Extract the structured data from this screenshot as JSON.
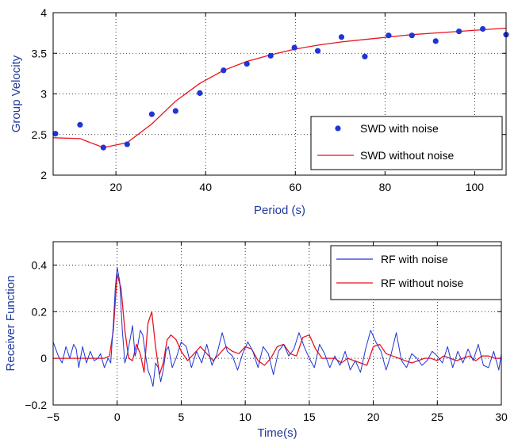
{
  "colors": {
    "blue": "#1f35d6",
    "red": "#e8131f",
    "axis_label": "#1f3a9b",
    "grid": "#000000"
  },
  "chart_data": [
    {
      "type": "scatter+line",
      "xlabel": "Period (s)",
      "ylabel": "Group Velocity",
      "xlim": [
        6,
        107
      ],
      "ylim": [
        2,
        4
      ],
      "xticks": [
        20,
        40,
        60,
        80,
        100
      ],
      "yticks": [
        2,
        2.5,
        3,
        3.5,
        4
      ],
      "grid": true,
      "legend_position": "bottom-right",
      "series": [
        {
          "name": "SWD with noise",
          "style": "markers",
          "color": "#1f35d6",
          "x": [
            6.5,
            12,
            17.2,
            22.5,
            28,
            33.3,
            38.7,
            44,
            49.2,
            54.5,
            59.8,
            65,
            70.3,
            75.5,
            80.8,
            86,
            91.3,
            96.5,
            101.8,
            107
          ],
          "y": [
            2.51,
            2.62,
            2.34,
            2.38,
            2.75,
            2.79,
            3.01,
            3.29,
            3.37,
            3.47,
            3.57,
            3.53,
            3.7,
            3.46,
            3.72,
            3.72,
            3.65,
            3.77,
            3.8,
            3.73
          ]
        },
        {
          "name": "SWD without noise",
          "style": "line",
          "color": "#e8131f",
          "x": [
            6,
            12,
            17.2,
            22.5,
            28,
            33.3,
            38.7,
            44,
            49.2,
            54.5,
            59.8,
            65,
            70.3,
            75.5,
            80.8,
            86,
            91.3,
            96.5,
            101.8,
            107
          ],
          "y": [
            2.46,
            2.45,
            2.34,
            2.4,
            2.63,
            2.91,
            3.13,
            3.29,
            3.4,
            3.48,
            3.55,
            3.6,
            3.64,
            3.67,
            3.7,
            3.73,
            3.75,
            3.77,
            3.79,
            3.81
          ]
        }
      ]
    },
    {
      "type": "line",
      "xlabel": "Time(s)",
      "ylabel": "Receiver Function",
      "xlim": [
        -5,
        30
      ],
      "ylim": [
        -0.2,
        0.5
      ],
      "xticks": [
        -5,
        0,
        5,
        10,
        15,
        20,
        25,
        30
      ],
      "yticks": [
        -0.2,
        0,
        0.2,
        0.4
      ],
      "grid": true,
      "legend_position": "top-right",
      "series": [
        {
          "name": "RF with noise",
          "style": "line",
          "color": "#1f35d6",
          "x": [
            -5,
            -4.6,
            -4.3,
            -4.0,
            -3.7,
            -3.4,
            -3.2,
            -3.0,
            -2.7,
            -2.4,
            -2.1,
            -1.8,
            -1.5,
            -1.3,
            -1.0,
            -0.7,
            -0.5,
            -0.3,
            -0.15,
            0,
            0.2,
            0.4,
            0.6,
            0.8,
            1.0,
            1.2,
            1.4,
            1.6,
            1.8,
            2.0,
            2.2,
            2.4,
            2.6,
            2.8,
            3.0,
            3.2,
            3.4,
            3.6,
            3.8,
            4.0,
            4.3,
            4.6,
            5.0,
            5.4,
            5.8,
            6.2,
            6.6,
            7.0,
            7.4,
            7.8,
            8.2,
            8.6,
            9.0,
            9.4,
            9.8,
            10.2,
            10.6,
            11.0,
            11.4,
            11.8,
            12.2,
            12.6,
            13.0,
            13.4,
            13.8,
            14.2,
            14.6,
            15.0,
            15.4,
            15.8,
            16.2,
            16.6,
            17.0,
            17.4,
            17.8,
            18.2,
            18.6,
            19.0,
            19.4,
            19.8,
            20.2,
            20.6,
            21.0,
            21.4,
            21.8,
            22.2,
            22.6,
            23.0,
            23.4,
            23.8,
            24.2,
            24.6,
            25.0,
            25.4,
            25.8,
            26.2,
            26.6,
            27.0,
            27.4,
            27.8,
            28.2,
            28.6,
            29.0,
            29.4,
            29.8,
            30
          ],
          "y": [
            0.07,
            0.01,
            -0.02,
            0.05,
            0.0,
            0.06,
            0.04,
            -0.04,
            0.05,
            -0.02,
            0.03,
            -0.01,
            0.0,
            0.02,
            -0.04,
            0.0,
            -0.02,
            0.15,
            0.3,
            0.39,
            0.33,
            0.12,
            -0.02,
            0.02,
            0.08,
            0.14,
            0.01,
            0.05,
            0.12,
            0.1,
            0.02,
            -0.05,
            -0.08,
            -0.12,
            -0.02,
            -0.04,
            -0.1,
            -0.05,
            0.03,
            0.05,
            -0.04,
            0.0,
            0.07,
            0.05,
            -0.04,
            0.03,
            -0.02,
            0.06,
            -0.03,
            0.02,
            0.11,
            0.03,
            0.01,
            -0.05,
            0.02,
            0.07,
            0.03,
            -0.04,
            0.05,
            0.02,
            -0.07,
            0.03,
            0.06,
            0.01,
            0.04,
            0.11,
            0.05,
            0.0,
            -0.04,
            0.06,
            0.02,
            -0.04,
            0.01,
            -0.03,
            0.03,
            -0.05,
            -0.01,
            -0.06,
            0.04,
            0.12,
            0.07,
            0.03,
            -0.05,
            0.02,
            0.11,
            -0.01,
            -0.04,
            0.02,
            0.0,
            -0.03,
            -0.01,
            0.03,
            0.01,
            -0.02,
            0.05,
            -0.04,
            0.03,
            -0.02,
            0.04,
            -0.01,
            0.06,
            -0.03,
            -0.04,
            0.03,
            -0.05,
            0.02
          ]
        },
        {
          "name": "RF without noise",
          "style": "line",
          "color": "#e8131f",
          "x": [
            -5,
            -4,
            -3,
            -2,
            -1,
            -0.6,
            -0.3,
            0,
            0.3,
            0.6,
            0.9,
            1.2,
            1.5,
            1.8,
            2.1,
            2.4,
            2.7,
            3.0,
            3.3,
            3.6,
            3.9,
            4.2,
            4.6,
            5.0,
            5.5,
            6.0,
            6.5,
            7.0,
            7.5,
            8.0,
            8.5,
            9.0,
            9.5,
            10.0,
            10.5,
            11.0,
            11.5,
            12.0,
            12.5,
            13.0,
            13.5,
            14.0,
            14.5,
            15.0,
            15.5,
            16.0,
            16.5,
            17.0,
            17.5,
            18.0,
            18.5,
            19.0,
            19.5,
            20.0,
            20.5,
            21.0,
            21.5,
            22.0,
            22.5,
            23.0,
            23.5,
            24.0,
            24.5,
            25.0,
            25.5,
            26.0,
            26.5,
            27.0,
            27.5,
            28.0,
            28.5,
            29.0,
            29.5,
            30
          ],
          "y": [
            0.0,
            0.0,
            0.0,
            0.0,
            0.0,
            0.01,
            0.12,
            0.36,
            0.3,
            0.12,
            0.0,
            -0.01,
            0.06,
            0.02,
            -0.06,
            0.15,
            0.2,
            0.05,
            -0.07,
            -0.02,
            0.08,
            0.1,
            0.08,
            0.03,
            -0.01,
            0.02,
            0.05,
            0.02,
            -0.01,
            0.02,
            0.05,
            0.03,
            0.02,
            0.05,
            0.04,
            -0.01,
            -0.03,
            0.0,
            0.05,
            0.06,
            0.02,
            0.01,
            0.09,
            0.1,
            0.04,
            0.0,
            0.0,
            0.0,
            -0.02,
            0.0,
            -0.01,
            -0.02,
            -0.03,
            0.05,
            0.06,
            0.02,
            0.01,
            0.0,
            -0.01,
            -0.02,
            -0.01,
            0.0,
            0.0,
            -0.01,
            0.01,
            0.0,
            -0.01,
            0.0,
            0.01,
            -0.01,
            0.01,
            0.01,
            0.0,
            0.0
          ]
        }
      ]
    }
  ]
}
